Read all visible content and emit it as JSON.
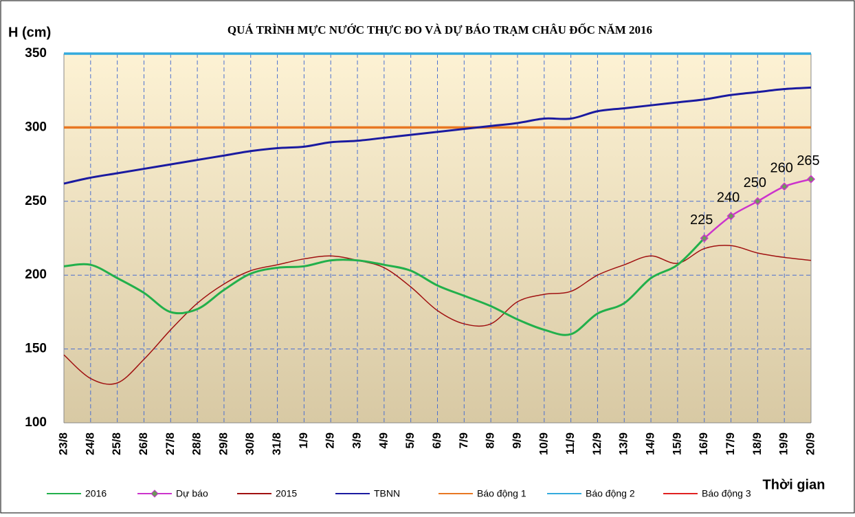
{
  "chart_data": {
    "type": "line",
    "title": "QUÁ TRÌNH MỰC NƯỚC THỰC ĐO VÀ DỰ BÁO TRẠM CHÂU ĐỐC NĂM 2016",
    "y_label": "H (cm)",
    "x_label": "Thời gian",
    "categories": [
      "23/8",
      "24/8",
      "25/8",
      "26/8",
      "27/8",
      "28/8",
      "29/8",
      "30/8",
      "31/8",
      "1/9",
      "2/9",
      "3/9",
      "4/9",
      "5/9",
      "6/9",
      "7/9",
      "8/9",
      "9/9",
      "10/9",
      "11/9",
      "12/9",
      "13/9",
      "14/9",
      "15/9",
      "16/9",
      "17/9",
      "18/9",
      "19/9",
      "20/9"
    ],
    "ylim": [
      100,
      350
    ],
    "yticks": [
      100,
      150,
      200,
      250,
      300,
      350
    ],
    "grid": true,
    "series": [
      {
        "name": "2016",
        "color": "#22b04b",
        "width": 3,
        "values": [
          206,
          207,
          198,
          188,
          175,
          177,
          190,
          201,
          205,
          206,
          210,
          210,
          207,
          203,
          193,
          186,
          179,
          170,
          163,
          160,
          174,
          181,
          198,
          207,
          225,
          null,
          null,
          null,
          null
        ]
      },
      {
        "name": "Dự báo",
        "color": "#cc33cc",
        "width": 2.5,
        "markers": true,
        "labels": true,
        "values": [
          null,
          null,
          null,
          null,
          null,
          null,
          null,
          null,
          null,
          null,
          null,
          null,
          null,
          null,
          null,
          null,
          null,
          null,
          null,
          null,
          null,
          null,
          null,
          null,
          225,
          240,
          250,
          260,
          265
        ]
      },
      {
        "name": "2015",
        "color": "#a01010",
        "width": 1.5,
        "values": [
          146,
          130,
          127,
          143,
          163,
          181,
          194,
          203,
          207,
          211,
          213,
          210,
          205,
          192,
          176,
          167,
          167,
          182,
          187,
          189,
          200,
          207,
          213,
          208,
          218,
          220,
          215,
          212,
          210
        ]
      },
      {
        "name": "TBNN",
        "color": "#1a1aa0",
        "width": 3,
        "values": [
          262,
          266,
          269,
          272,
          275,
          278,
          281,
          284,
          286,
          287,
          290,
          291,
          293,
          295,
          297,
          299,
          301,
          303,
          306,
          306,
          311,
          313,
          315,
          317,
          319,
          322,
          324,
          326,
          327
        ]
      },
      {
        "name": "Báo động 1",
        "color": "#e87722",
        "width": 3.5,
        "values": [
          300,
          300,
          300,
          300,
          300,
          300,
          300,
          300,
          300,
          300,
          300,
          300,
          300,
          300,
          300,
          300,
          300,
          300,
          300,
          300,
          300,
          300,
          300,
          300,
          300,
          300,
          300,
          300,
          300
        ]
      },
      {
        "name": "Báo động 2",
        "color": "#33aadd",
        "width": 3.5,
        "values": [
          350,
          350,
          350,
          350,
          350,
          350,
          350,
          350,
          350,
          350,
          350,
          350,
          350,
          350,
          350,
          350,
          350,
          350,
          350,
          350,
          350,
          350,
          350,
          350,
          350,
          350,
          350,
          350,
          350
        ]
      },
      {
        "name": "Báo động 3",
        "color": "#e02020",
        "width": 2,
        "values": [
          null,
          null,
          null,
          null,
          null,
          null,
          null,
          null,
          null,
          null,
          null,
          null,
          null,
          null,
          null,
          null,
          null,
          null,
          null,
          null,
          null,
          null,
          null,
          null,
          null,
          null,
          null,
          null,
          null
        ]
      }
    ]
  }
}
